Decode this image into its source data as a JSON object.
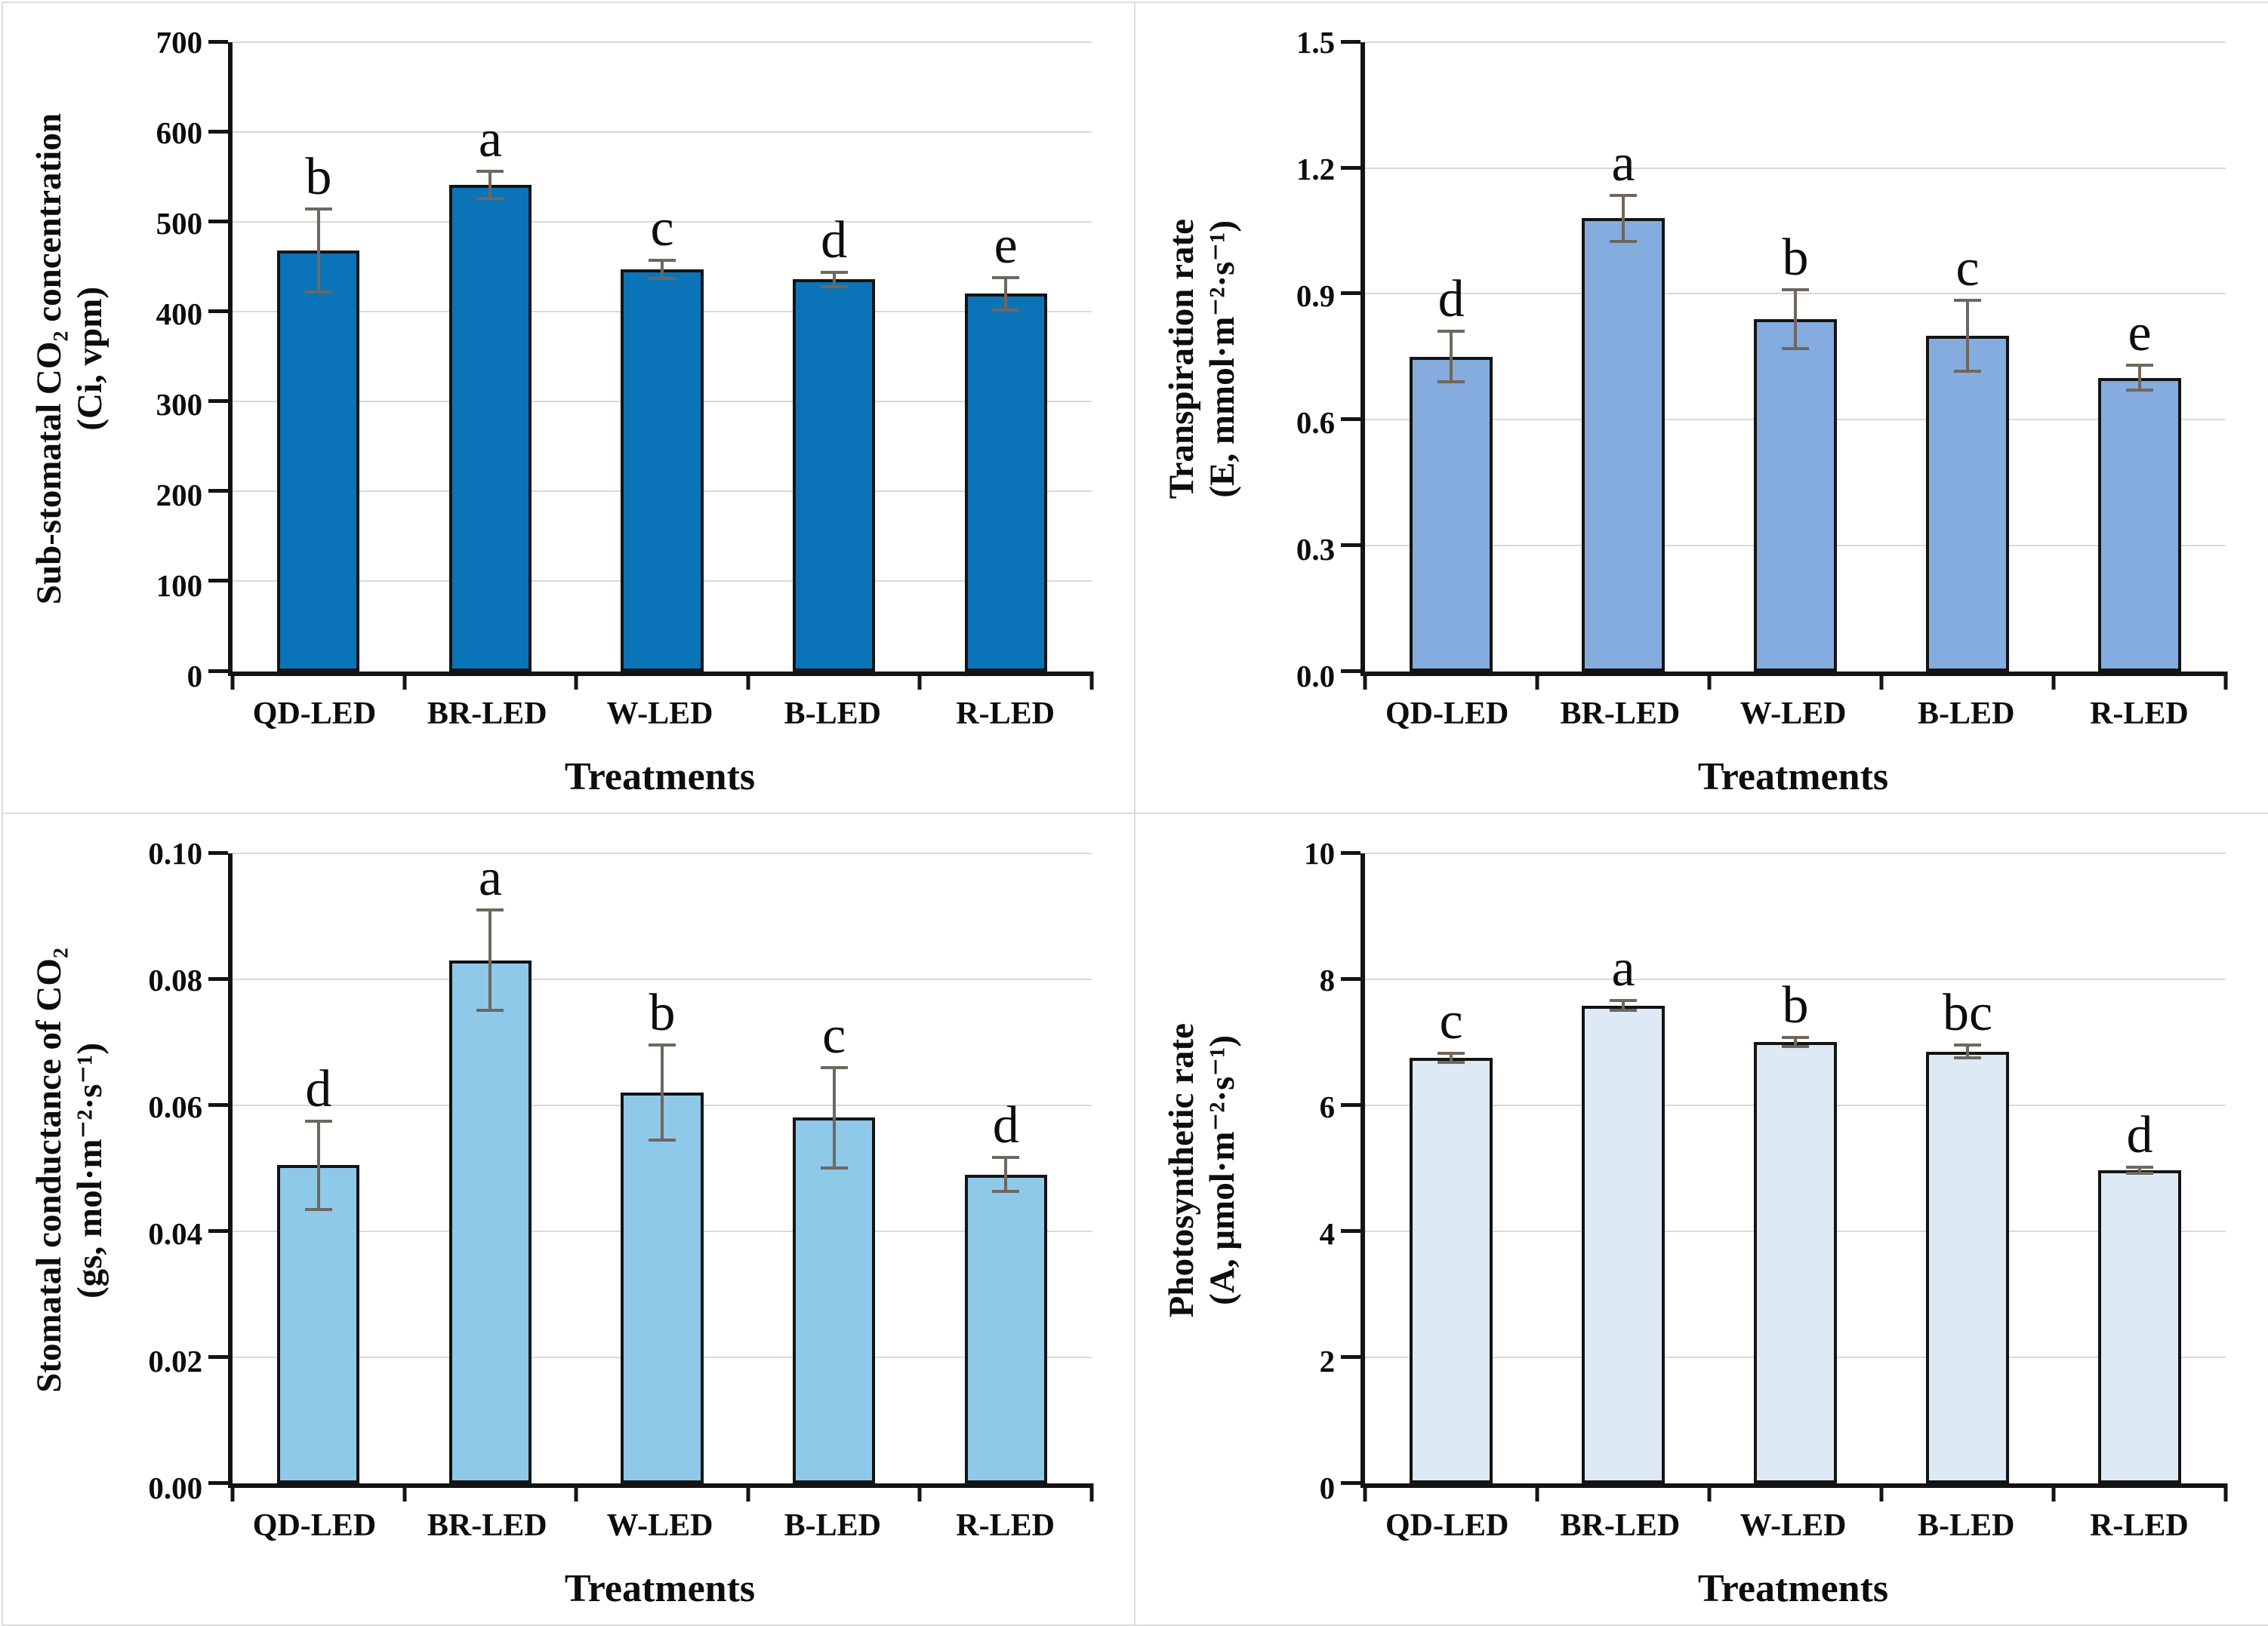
{
  "figure": {
    "x_axis_title": "Treatments",
    "categories": [
      "QD-LED",
      "BR-LED",
      "W-LED",
      "B-LED",
      "R-LED"
    ],
    "styles": {
      "axis_color": "#141414",
      "gridline_color": "#d9d9d9",
      "error_bar_color": "#6f675e",
      "letter_color": "#0d0d0d",
      "panel_border_color": "#dcdcdc"
    }
  },
  "chart_data": [
    {
      "type": "bar",
      "position": "top-left",
      "ylabel_line1": "Sub-stomatal CO₂ concentration",
      "ylabel_line2": "(Ci, vpm)",
      "xlabel": "Treatments",
      "categories": [
        "QD-LED",
        "BR-LED",
        "W-LED",
        "B-LED",
        "R-LED"
      ],
      "values": [
        468,
        541,
        447,
        436,
        420
      ],
      "errors": [
        46,
        15,
        10,
        8,
        18
      ],
      "sig_letters": [
        "b",
        "a",
        "c",
        "d",
        "e"
      ],
      "ylim": [
        0,
        700
      ],
      "yticks": [
        "0",
        "100",
        "200",
        "300",
        "400",
        "500",
        "600",
        "700"
      ],
      "bar_color": "#0b74b8",
      "grid": true,
      "legend": "none"
    },
    {
      "type": "bar",
      "position": "top-right",
      "ylabel_line1": "Transpiration rate",
      "ylabel_line2": "(E, mmol·m⁻²·s⁻¹)",
      "xlabel": "Treatments",
      "categories": [
        "QD-LED",
        "BR-LED",
        "W-LED",
        "B-LED",
        "R-LED"
      ],
      "values": [
        0.75,
        1.08,
        0.84,
        0.8,
        0.7
      ],
      "errors": [
        0.06,
        0.055,
        0.07,
        0.085,
        0.03
      ],
      "sig_letters": [
        "d",
        "a",
        "b",
        "c",
        "e"
      ],
      "ylim": [
        0,
        1.5
      ],
      "yticks": [
        "0.0",
        "0.3",
        "0.6",
        "0.9",
        "1.2",
        "1.5"
      ],
      "bar_color": "#85acdf",
      "grid": true,
      "legend": "none"
    },
    {
      "type": "bar",
      "position": "bottom-left",
      "ylabel_line1": "Stomatal conductance of CO₂",
      "ylabel_line2": "(gs, mol·m⁻²·s⁻¹)",
      "xlabel": "Treatments",
      "categories": [
        "QD-LED",
        "BR-LED",
        "W-LED",
        "B-LED",
        "R-LED"
      ],
      "values": [
        0.0505,
        0.083,
        0.062,
        0.058,
        0.049
      ],
      "errors": [
        0.007,
        0.008,
        0.0075,
        0.008,
        0.0027
      ],
      "sig_letters": [
        "d",
        "a",
        "b",
        "c",
        "d"
      ],
      "ylim": [
        0,
        0.1
      ],
      "yticks": [
        "0.00",
        "0.02",
        "0.04",
        "0.06",
        "0.08",
        "0.10"
      ],
      "bar_color": "#8fc9e9",
      "grid": true,
      "legend": "none"
    },
    {
      "type": "bar",
      "position": "bottom-right",
      "ylabel_line1": "Photosynthetic rate",
      "ylabel_line2": "(A, μmol·m⁻²·s⁻¹)",
      "xlabel": "Treatments",
      "categories": [
        "QD-LED",
        "BR-LED",
        "W-LED",
        "B-LED",
        "R-LED"
      ],
      "values": [
        6.75,
        7.58,
        7.0,
        6.85,
        4.97
      ],
      "errors": [
        0.07,
        0.08,
        0.07,
        0.1,
        0.05
      ],
      "sig_letters": [
        "c",
        "a",
        "b",
        "bc",
        "d"
      ],
      "ylim": [
        0,
        10
      ],
      "yticks": [
        "0",
        "2",
        "4",
        "6",
        "8",
        "10"
      ],
      "bar_color": "#ddeaf6",
      "grid": true,
      "legend": "none"
    }
  ]
}
